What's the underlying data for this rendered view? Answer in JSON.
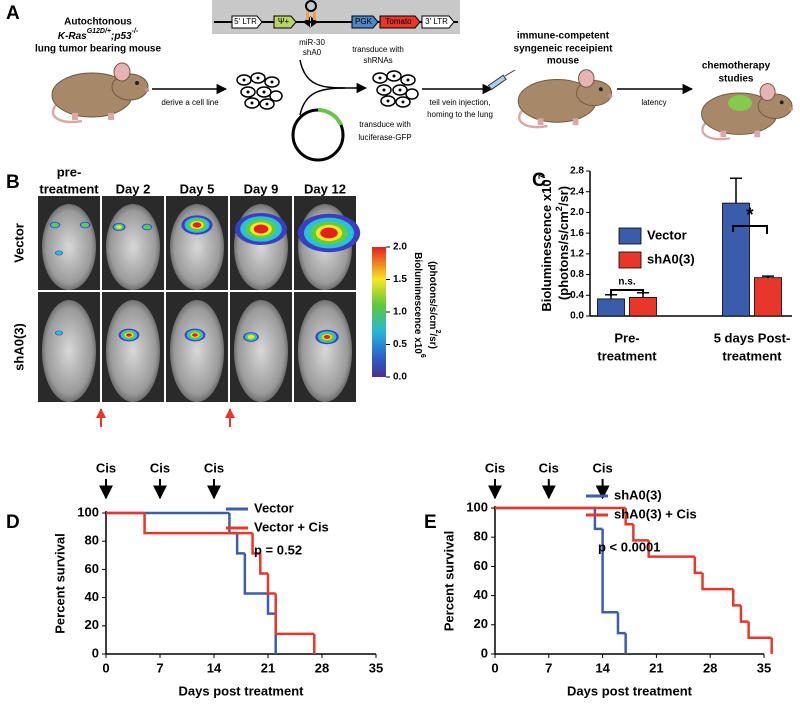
{
  "panel_a": {
    "label": "A",
    "source_mouse": {
      "line1": "Autochtonous",
      "genotype": [
        "K-Ras",
        "G12D/+",
        ";p53",
        "-/-"
      ],
      "line3": "lung tumor bearing mouse"
    },
    "vector": {
      "elements": [
        "5' LTR",
        "Ψ+",
        "PGK",
        "Tomato",
        "3' LTR"
      ],
      "hairpin": [
        "miR-30",
        "shA0"
      ]
    },
    "derive": "derive a cell line",
    "transduce_shrna": [
      "transduce with",
      "shRNAs"
    ],
    "transduce_luc": [
      "transduce with",
      "luciferase-GFP"
    ],
    "injection": [
      "teil vein injection,",
      "homing to the lung"
    ],
    "recipient": [
      "immune-competent",
      "syngeneic receipient",
      "mouse"
    ],
    "latency": "latency",
    "chemo": [
      "chemotherapy",
      "studies"
    ]
  },
  "panel_b": {
    "label": "B",
    "columns": [
      [
        "pre-",
        "treatment"
      ],
      [
        "Day 2"
      ],
      [
        "Day 5"
      ],
      [
        "Day 9"
      ],
      [
        "Day 12"
      ]
    ],
    "rows": [
      "Vector",
      "shA0(3)"
    ],
    "colorbar": {
      "title": [
        "Bioluminescence x10",
        "6"
      ],
      "units": [
        "(photons/s/cm",
        "2",
        "/sr)"
      ],
      "lim": [
        0,
        2
      ],
      "ticks": [
        {
          "value": 0,
          "label": "0.0"
        },
        0.5,
        {
          "value": 1,
          "label": "1.0"
        },
        1.5,
        {
          "value": 2,
          "label": "2.0"
        }
      ]
    }
  },
  "chart_data": [
    {
      "type": "bar",
      "label": "C",
      "ylabel": [
        [
          "Bioluminescence x10",
          "7"
        ],
        [
          "(photons/s/cm",
          "2",
          "/sr)"
        ]
      ],
      "categories": [
        [
          "Pre-",
          "treatment"
        ],
        [
          "5 days  Post-",
          "treatment"
        ]
      ],
      "series": [
        {
          "name": "Vector",
          "color": "#3a5dab",
          "values": [
            0.33,
            2.18
          ],
          "errors": [
            0.08,
            0.48
          ]
        },
        {
          "name": "shA0(3)",
          "color": "#e8372a",
          "values": [
            0.36,
            0.74
          ],
          "errors": [
            0.09,
            0.03
          ]
        }
      ],
      "annotations": [
        "n.s.",
        "*"
      ],
      "ylim": [
        0,
        2.8
      ],
      "yticks": [
        {
          "value": 0,
          "label": "0.0"
        },
        0.4,
        0.8,
        1.2,
        1.6,
        {
          "value": 2,
          "label": "2.0"
        },
        2.4,
        2.8
      ],
      "legend": "upper left"
    },
    {
      "type": "line",
      "label": "D",
      "drawstyle": "steps-post",
      "xlabel": "Days post treatment",
      "ylabel": "Percent survival",
      "treatment": {
        "label": "Cis",
        "x": [
          0,
          7,
          14
        ]
      },
      "annotation": "p = 0.52",
      "series": [
        {
          "name": "Vector",
          "color": "#3b5eab",
          "x": [
            0,
            16,
            17,
            18,
            21,
            22
          ],
          "values": [
            100,
            85.7,
            71.4,
            42.9,
            28.6,
            0
          ]
        },
        {
          "name": "Vector + Cis",
          "color": "#e8372a",
          "x": [
            0,
            5,
            19,
            20,
            21,
            22,
            27
          ],
          "values": [
            100,
            85.7,
            71.4,
            57.1,
            42.9,
            14.3,
            0
          ]
        }
      ],
      "xlim": [
        0,
        35
      ],
      "xticks": [
        0,
        7,
        14,
        21,
        28,
        35
      ],
      "ylim": [
        0,
        100
      ],
      "yticks": [
        0,
        20,
        40,
        60,
        80,
        100
      ],
      "legend": "upper right"
    },
    {
      "type": "line",
      "label": "E",
      "drawstyle": "steps-post",
      "xlabel": "Days post treatment",
      "ylabel": "Percent survival",
      "treatment": {
        "label": "Cis",
        "x": [
          0,
          7,
          14
        ]
      },
      "annotation": "p < 0.0001",
      "series": [
        {
          "name": "shA0(3)",
          "color": "#3b5eab",
          "x": [
            0,
            13,
            14,
            16,
            17
          ],
          "values": [
            100,
            85.7,
            28.6,
            14.3,
            0
          ]
        },
        {
          "name": "shA0(3) + Cis",
          "color": "#e8372a",
          "x": [
            0,
            17,
            18,
            20,
            26,
            27,
            31,
            32,
            33,
            36
          ],
          "values": [
            100,
            88.9,
            77.8,
            66.7,
            55.6,
            44.4,
            33.3,
            22.2,
            11.1,
            0
          ]
        }
      ],
      "xlim": [
        0,
        35
      ],
      "xticks": [
        0,
        7,
        14,
        21,
        28,
        35
      ],
      "ylim": [
        0,
        100
      ],
      "yticks": [
        0,
        20,
        40,
        60,
        80,
        100
      ],
      "legend": "upper right"
    }
  ]
}
